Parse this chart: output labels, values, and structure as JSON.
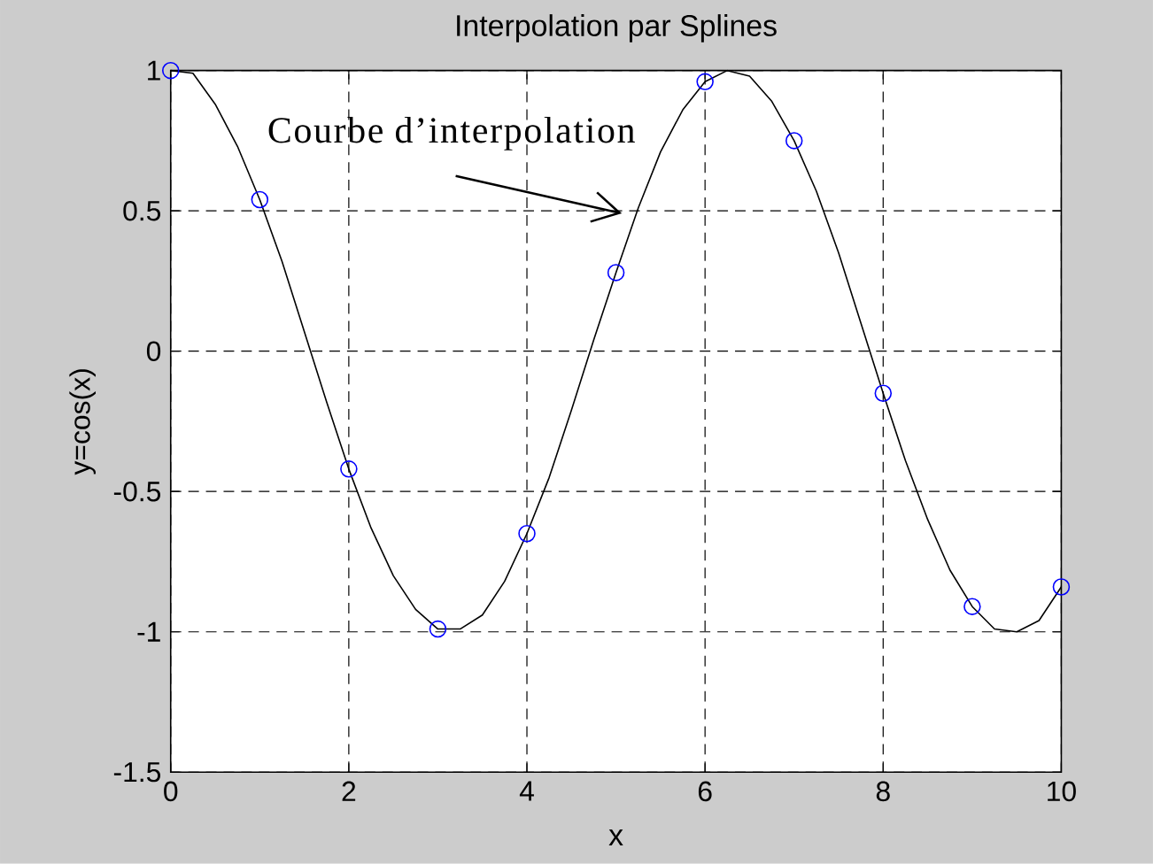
{
  "chart_data": {
    "type": "line",
    "title": "Interpolation par Splines",
    "xlabel": "x",
    "ylabel": "y=cos(x)",
    "xlim": [
      0,
      10
    ],
    "ylim": [
      -1.5,
      1
    ],
    "xticks": [
      0,
      2,
      4,
      6,
      8,
      10
    ],
    "yticks": [
      -1.5,
      -1,
      -0.5,
      0,
      0.5,
      1
    ],
    "grid": true,
    "series": [
      {
        "type": "scatter",
        "marker": "circle",
        "color": "#0000ff",
        "x": [
          0,
          1,
          2,
          3,
          4,
          5,
          6,
          7,
          8,
          9,
          10
        ],
        "values": [
          1.0,
          0.54,
          -0.42,
          -0.99,
          -0.65,
          0.28,
          0.96,
          0.75,
          -0.15,
          -0.91,
          -0.84
        ]
      },
      {
        "color": "#000000",
        "line_style": "solid",
        "x": [
          0,
          0.25,
          0.5,
          0.75,
          1,
          1.25,
          1.5,
          1.75,
          2,
          2.25,
          2.5,
          2.75,
          3,
          3.25,
          3.5,
          3.75,
          4,
          4.25,
          4.5,
          4.75,
          5,
          5.25,
          5.5,
          5.75,
          6,
          6.25,
          6.5,
          6.75,
          7,
          7.25,
          7.5,
          7.75,
          8,
          8.25,
          8.5,
          8.75,
          9,
          9.25,
          9.5,
          9.75,
          10
        ],
        "values": [
          1.0,
          0.99,
          0.88,
          0.73,
          0.54,
          0.32,
          0.07,
          -0.18,
          -0.42,
          -0.63,
          -0.8,
          -0.92,
          -0.99,
          -0.99,
          -0.94,
          -0.82,
          -0.65,
          -0.45,
          -0.21,
          0.04,
          0.28,
          0.51,
          0.71,
          0.86,
          0.96,
          1.0,
          0.98,
          0.89,
          0.75,
          0.57,
          0.35,
          0.1,
          -0.15,
          -0.39,
          -0.6,
          -0.78,
          -0.91,
          -0.99,
          -1.0,
          -0.96,
          -0.84
        ]
      }
    ],
    "annotations": [
      {
        "text": "Courbe d’interpolation",
        "x": 5.22,
        "y": 0.48
      }
    ]
  }
}
